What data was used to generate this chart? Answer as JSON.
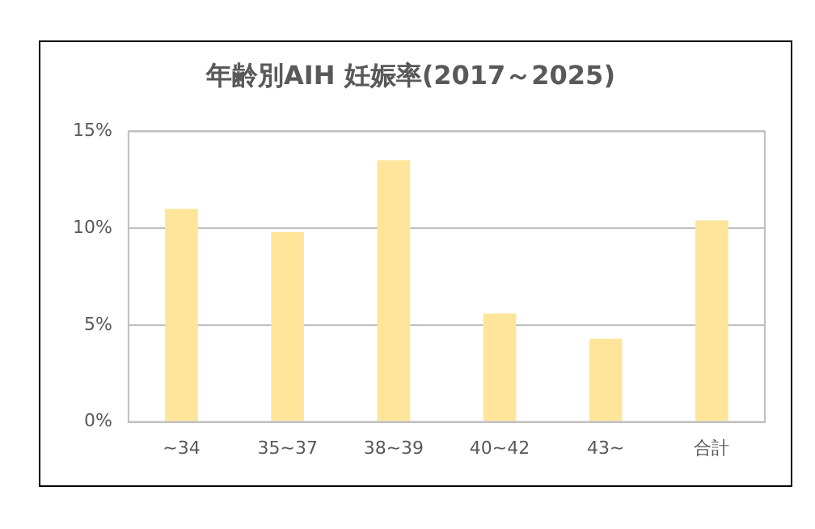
{
  "chart_data": {
    "type": "bar",
    "title": "年齢別AIH 妊娠率(2017～2025)",
    "categories": [
      "~34",
      "35~37",
      "38~39",
      "40~42",
      "43~",
      "合計"
    ],
    "values": [
      11.0,
      9.8,
      13.5,
      5.6,
      4.3,
      10.4
    ],
    "color": "#fee599",
    "ylim": [
      0,
      15
    ],
    "yticks": [
      {
        "value": 0,
        "label": "0%"
      },
      {
        "value": 5,
        "label": "5%"
      },
      {
        "value": 10,
        "label": "10%"
      },
      {
        "value": 15,
        "label": "15%"
      }
    ],
    "grid": "y",
    "legend": false
  }
}
